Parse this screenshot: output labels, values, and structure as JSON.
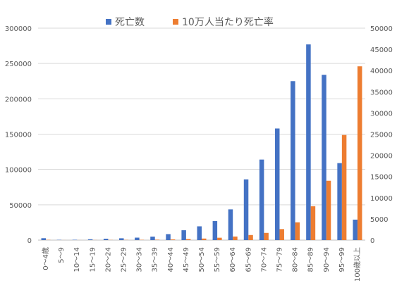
{
  "chart_data": {
    "type": "bar",
    "categories": [
      "0～4歳",
      "5～9",
      "10～14",
      "15～19",
      "20～24",
      "25～29",
      "30～34",
      "35～39",
      "40～44",
      "45～49",
      "50～54",
      "55～59",
      "60～64",
      "65～69",
      "70～74",
      "75～79",
      "80～84",
      "85～89",
      "90～94",
      "95～99",
      "100歳以上"
    ],
    "series": [
      {
        "name": "死亡数",
        "axis": "left",
        "color": "#4472C4",
        "values": [
          2700,
          400,
          500,
          1200,
          2000,
          2600,
          3500,
          5000,
          8500,
          14000,
          19500,
          27000,
          43500,
          86000,
          114000,
          158000,
          225000,
          277000,
          234000,
          109000,
          29000
        ]
      },
      {
        "name": "10万人当たり死亡率",
        "axis": "right",
        "color": "#ED7D31",
        "values": [
          60,
          8,
          10,
          20,
          40,
          50,
          70,
          100,
          160,
          250,
          370,
          560,
          850,
          1200,
          1700,
          2600,
          4200,
          8000,
          14000,
          24800,
          41000
        ]
      }
    ],
    "left_axis": {
      "min": 0,
      "max": 300000,
      "ticks": [
        0,
        50000,
        100000,
        150000,
        200000,
        250000,
        300000
      ]
    },
    "right_axis": {
      "min": 0,
      "max": 50000,
      "ticks": [
        0,
        5000,
        10000,
        15000,
        20000,
        25000,
        30000,
        35000,
        40000,
        45000,
        50000
      ]
    },
    "grid": true,
    "legend_position": "top"
  }
}
